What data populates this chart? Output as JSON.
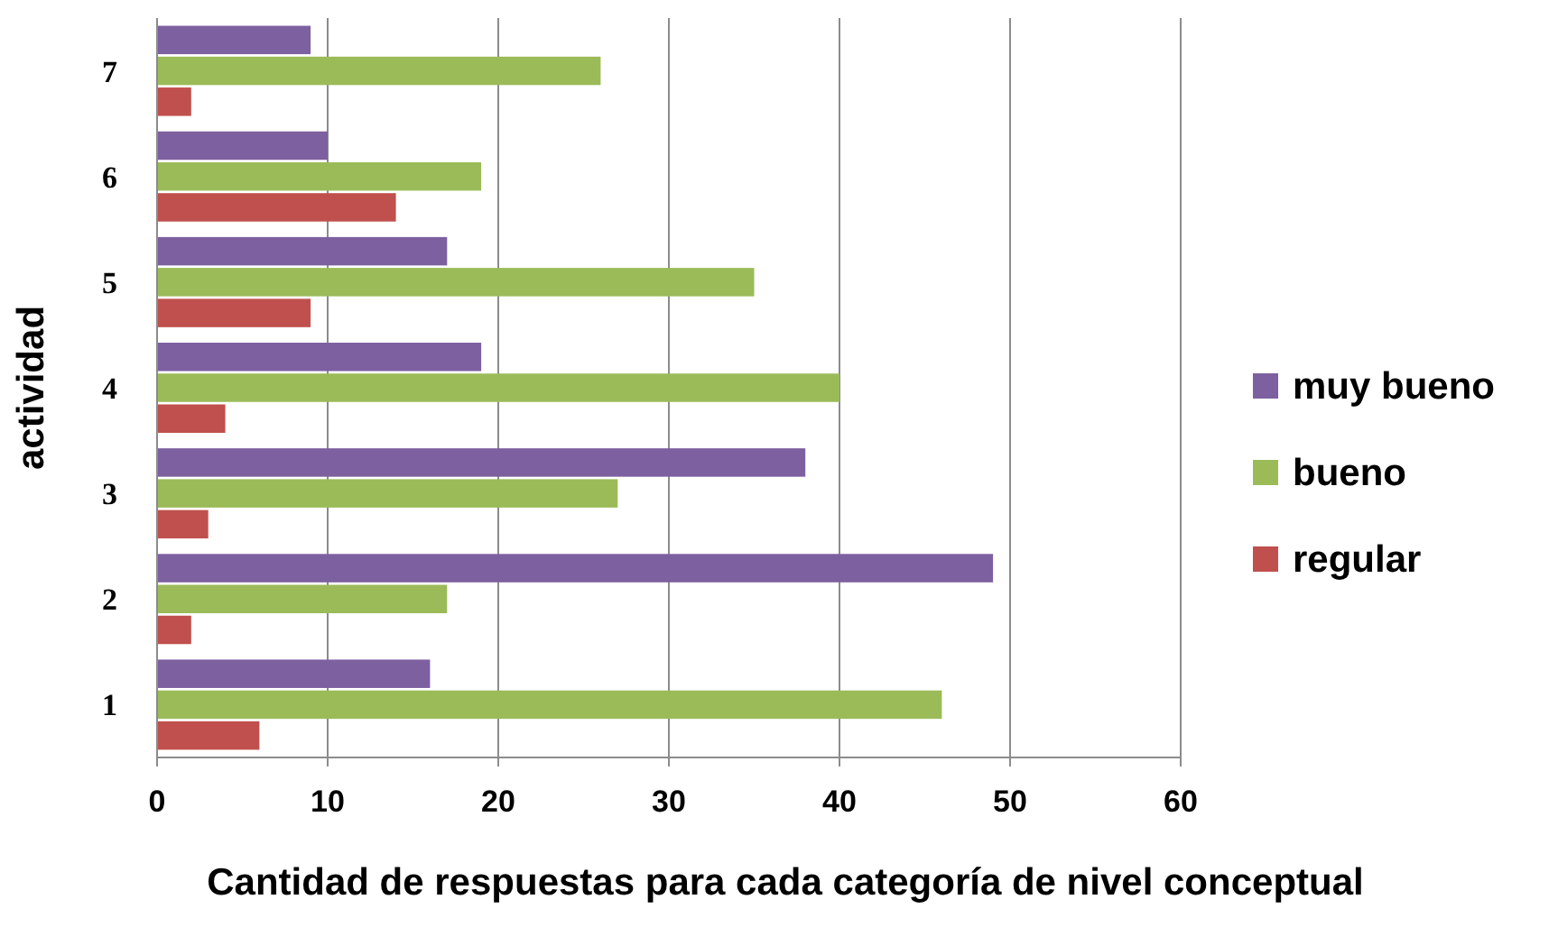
{
  "chart_data": {
    "type": "bar",
    "orientation": "horizontal",
    "xlabel": "Cantidad de respuestas para cada categoría de nivel conceptual",
    "ylabel": "actividad",
    "categories": [
      "7",
      "6",
      "5",
      "4",
      "3",
      "2",
      "1"
    ],
    "series": [
      {
        "name": "muy bueno",
        "color": "#7d60a0",
        "values": [
          9,
          10,
          17,
          19,
          38,
          49,
          16
        ]
      },
      {
        "name": "bueno",
        "color": "#9bbb59",
        "values": [
          26,
          19,
          35,
          40,
          27,
          17,
          46
        ]
      },
      {
        "name": "regular",
        "color": "#c0504d",
        "values": [
          2,
          14,
          9,
          4,
          3,
          2,
          6
        ]
      }
    ],
    "xlim": [
      0,
      60
    ],
    "xticks": [
      0,
      10,
      20,
      30,
      40,
      50,
      60
    ],
    "grid": "x",
    "legend": "right"
  }
}
